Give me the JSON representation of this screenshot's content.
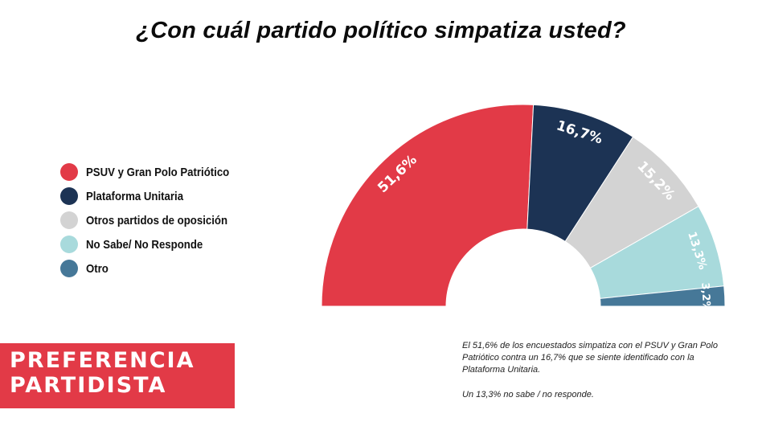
{
  "title": "¿Con cuál partido político simpatiza usted?",
  "banner": {
    "line1": "PREFERENCIA",
    "line2": "PARTIDISTA"
  },
  "note": {
    "p1": "El 51,6% de los encuestados simpatiza con el PSUV y Gran Polo Patriótico contra un 16,7% que se siente identificado con la Plataforma Unitaria.",
    "p2": "Un 13,3% no sabe / no responde."
  },
  "legend": [
    {
      "label": "PSUV y Gran Polo Patriótico",
      "color": "#e23a47"
    },
    {
      "label": "Plataforma Unitaria",
      "color": "#1c3354"
    },
    {
      "label": "Otros partidos de oposición",
      "color": "#d3d3d3"
    },
    {
      "label": "No Sabe/ No Responde",
      "color": "#a8dadc"
    },
    {
      "label": "Otro",
      "color": "#467898"
    }
  ],
  "chart_data": {
    "type": "pie",
    "variant": "semicircle-donut",
    "categories": [
      "PSUV y Gran Polo Patriótico",
      "Plataforma Unitaria",
      "Otros partidos de oposición",
      "No Sabe/ No Responde",
      "Otro"
    ],
    "values": [
      51.6,
      16.7,
      15.2,
      13.3,
      3.2
    ],
    "labels": [
      "51,6%",
      "16,7%",
      "15,2%",
      "13,3%",
      "3,2%"
    ],
    "colors": [
      "#e23a47",
      "#1c3354",
      "#d3d3d3",
      "#a8dadc",
      "#467898"
    ],
    "legend_position": "left"
  }
}
